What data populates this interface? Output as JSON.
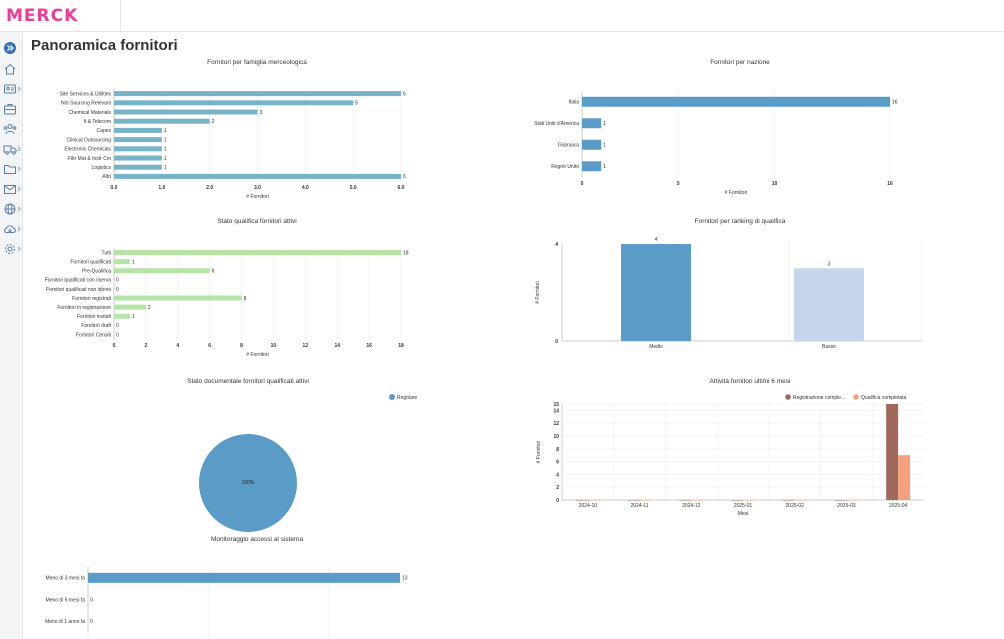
{
  "app": {
    "logo": "MERCK"
  },
  "page": {
    "title": "Panoramica fornitori"
  },
  "sidebar": {
    "items": [
      {
        "icon": "expand-icon"
      },
      {
        "icon": "home-icon"
      },
      {
        "icon": "id-card-icon"
      },
      {
        "icon": "briefcase-icon"
      },
      {
        "icon": "users-icon"
      },
      {
        "icon": "truck-icon"
      },
      {
        "icon": "folder-icon"
      },
      {
        "icon": "mail-icon"
      },
      {
        "icon": "globe-icon"
      },
      {
        "icon": "cloud-download-icon"
      },
      {
        "icon": "gear-icon"
      }
    ]
  },
  "colors": {
    "brand": "#eb3c96",
    "teal": "#78b4c8",
    "blue": "#5b9bc8",
    "green": "#b6e3a6",
    "lightblue": "#c5d6ee",
    "brown": "#a0695a",
    "orange": "#f4a07d"
  },
  "chart_data": [
    {
      "id": "famiglia",
      "type": "bar",
      "orientation": "horizontal",
      "title": "Fornitori per famiglia merceologica",
      "xlabel": "# Fornitori",
      "categories": [
        "Site Services & Utilities",
        "Not Sourcing Relevant",
        "Chemical Materials",
        "It & Telecom",
        "Capex",
        "Clinical Outsourcing",
        "Electronic Chemicals",
        "Filtr Mat & Instr Cm",
        "Logistics",
        "Altri"
      ],
      "values": [
        6,
        5,
        3,
        2,
        1,
        1,
        1,
        1,
        1,
        6
      ],
      "labels": [
        "6",
        "5",
        "3",
        "2",
        "1",
        "1",
        "1",
        "1",
        "1",
        "6"
      ],
      "ticks": [
        0,
        1,
        2,
        3,
        4,
        5,
        6
      ],
      "tick_labels": [
        "0.0",
        "1.0",
        "2.0",
        "3.0",
        "4.0",
        "5.0",
        "6.0"
      ],
      "xlim": [
        0,
        6
      ],
      "color": "#78b4c8"
    },
    {
      "id": "nazione",
      "type": "bar",
      "orientation": "horizontal",
      "title": "Fornitori per nazione",
      "xlabel": "# Fornitori",
      "categories": [
        "Italia",
        "Stati Uniti d'America",
        "Giamaica",
        "Regno Unito"
      ],
      "values": [
        16,
        1,
        1,
        1
      ],
      "labels": [
        "16",
        "1",
        "1",
        "1"
      ],
      "ticks": [
        0,
        5,
        10,
        16
      ],
      "tick_labels": [
        "0",
        "5",
        "10",
        "16"
      ],
      "xlim": [
        0,
        16
      ],
      "color": "#5b9bc8"
    },
    {
      "id": "qualifica",
      "type": "bar",
      "orientation": "horizontal",
      "title": "Stato qualifica fornitori attivi",
      "xlabel": "# Fornitori",
      "categories": [
        "Tutti",
        "Fornitori qualificati",
        "Pre-Qualifica",
        "Fornitori qualificati con riserva",
        "Fornitori qualificati non idonei",
        "Fornitori registrati",
        "Fornitori in registrazione",
        "Fornitori invitati",
        "Fornitori draft",
        "Fornitori Censiti"
      ],
      "values": [
        18,
        1,
        6,
        0,
        0,
        8,
        2,
        1,
        0,
        0
      ],
      "labels": [
        "18",
        "1",
        "6",
        "0",
        "0",
        "8",
        "2",
        "1",
        "0",
        "0"
      ],
      "ticks": [
        0,
        2,
        4,
        6,
        8,
        10,
        12,
        14,
        16,
        18
      ],
      "tick_labels": [
        "0",
        "2",
        "4",
        "6",
        "8",
        "10",
        "12",
        "14",
        "16",
        "18"
      ],
      "xlim": [
        0,
        18
      ],
      "color": "#b6e3a6"
    },
    {
      "id": "ranking",
      "type": "bar",
      "orientation": "vertical",
      "title": "Fornitori per ranking di qualifica",
      "ylabel": "# Fornitori",
      "categories": [
        "Medio",
        "Basso"
      ],
      "values": [
        4,
        3
      ],
      "labels": [
        "4",
        "3"
      ],
      "colors": [
        "#5b9bc8",
        "#c5d6ee"
      ],
      "ticks": [
        0,
        4
      ],
      "tick_labels": [
        "0",
        "4"
      ],
      "ylim": [
        0,
        4
      ]
    },
    {
      "id": "documentale",
      "type": "pie",
      "title": "Stato documentale fornitori qualificati attivi",
      "slices": [
        {
          "name": "Regolare",
          "value": 100,
          "label": "100%",
          "color": "#5b9bc8"
        }
      ],
      "legend": "top-right"
    },
    {
      "id": "attivita",
      "type": "bar",
      "orientation": "vertical",
      "title": "Attività fornitori ultimi 6 mesi",
      "xlabel": "Mesi",
      "ylabel": "# Fornitori",
      "categories": [
        "2024-10",
        "2024-11",
        "2024-12",
        "2025-01",
        "2025-02",
        "2025-03",
        "2025-04"
      ],
      "series": [
        {
          "name": "Registrazione comple...",
          "values": [
            0,
            0,
            0,
            0,
            0,
            0,
            15
          ],
          "color": "#a0695a"
        },
        {
          "name": "Qualifica completata",
          "values": [
            0,
            0,
            0,
            0,
            0,
            0,
            7
          ],
          "color": "#f4a07d"
        }
      ],
      "ticks": [
        0,
        2,
        4,
        6,
        8,
        10,
        12,
        14,
        15
      ],
      "tick_labels": [
        "0",
        "2",
        "4",
        "6",
        "8",
        "10",
        "12",
        "14",
        "15"
      ],
      "ylim": [
        0,
        15
      ],
      "legend": "top-right"
    },
    {
      "id": "accessi",
      "type": "bar",
      "orientation": "horizontal",
      "title": "Monitoraggio accessi al sistema",
      "categories": [
        "Meno di 3 mesi fa",
        "Meno di 6 mesi fa",
        "Meno di 1 anno fa"
      ],
      "values": [
        13,
        0,
        0
      ],
      "labels": [
        "13",
        "0",
        "0"
      ],
      "xlim": [
        0,
        13
      ],
      "color": "#5b9bc8"
    }
  ]
}
